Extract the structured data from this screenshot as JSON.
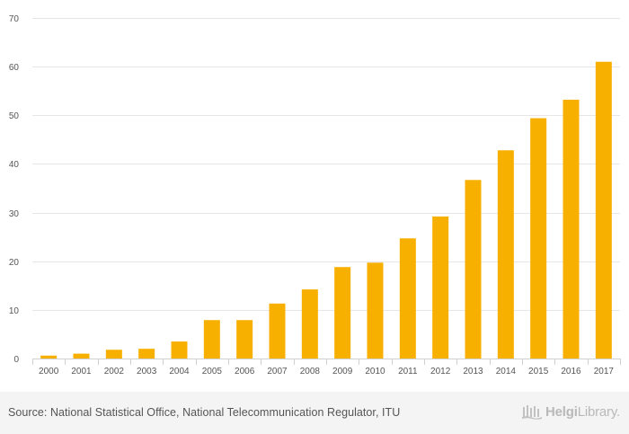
{
  "chart_data": {
    "type": "bar",
    "title": "",
    "xlabel": "",
    "ylabel": "",
    "ylim": [
      0,
      70
    ],
    "yticks": [
      0,
      10,
      20,
      30,
      40,
      50,
      60,
      70
    ],
    "categories": [
      "2000",
      "2001",
      "2002",
      "2003",
      "2004",
      "2005",
      "2006",
      "2007",
      "2008",
      "2009",
      "2010",
      "2011",
      "2012",
      "2013",
      "2014",
      "2015",
      "2016",
      "2017"
    ],
    "values": [
      0.6,
      1.0,
      1.8,
      2.0,
      3.5,
      7.9,
      7.9,
      11.3,
      14.2,
      18.8,
      19.7,
      24.7,
      29.2,
      36.7,
      42.8,
      49.4,
      53.2,
      61.0
    ],
    "bar_color": "#f8b000",
    "grid": true,
    "legend": "none"
  },
  "footer": {
    "source": "Source: National Statistical Office, National Telecommunication Regulator, ITU",
    "brand_bold": "Helgi",
    "brand_light": "Library."
  },
  "colors": {
    "bar": "#f8b000",
    "grid": "#e6e6e6",
    "tick_text": "#555555",
    "footer_bg": "#f4f4f4",
    "brand": "#b9b9b9"
  },
  "icons": {
    "brand_logo": "helgi-library-logo-icon"
  }
}
